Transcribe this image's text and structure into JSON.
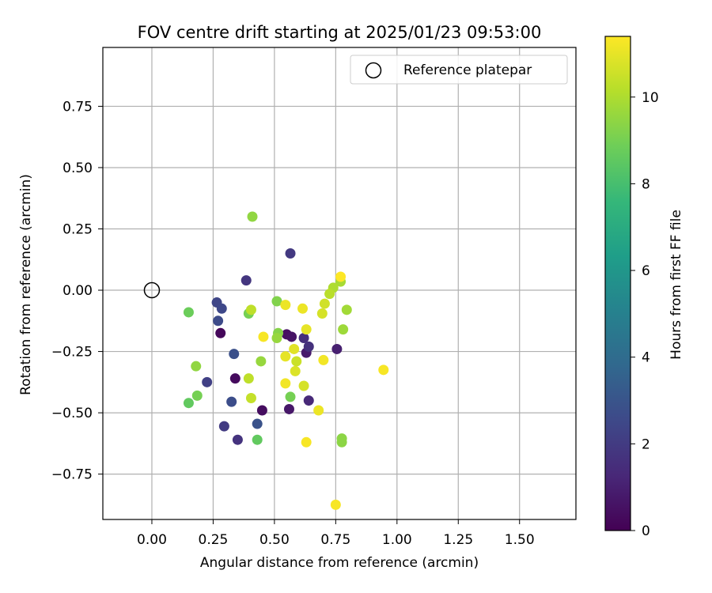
{
  "chart_data": {
    "type": "scatter",
    "title": "FOV centre drift starting at 2025/01/23 09:53:00",
    "xlabel": "Angular distance from reference (arcmin)",
    "ylabel": "Rotation from reference (arcmin)",
    "xlim": [
      -0.2,
      1.73
    ],
    "ylim": [
      -0.935,
      0.99
    ],
    "xticks": [
      0.0,
      0.25,
      0.5,
      0.75,
      1.0,
      1.25,
      1.5
    ],
    "xtick_labels": [
      "0.00",
      "0.25",
      "0.50",
      "0.75",
      "1.00",
      "1.25",
      "1.50"
    ],
    "yticks": [
      0.75,
      0.5,
      0.25,
      0.0,
      -0.25,
      -0.5,
      -0.75
    ],
    "ytick_labels": [
      "0.75",
      "0.50",
      "0.25",
      "0.00",
      "−0.25",
      "−0.50",
      "−0.75"
    ],
    "grid": true,
    "legend_position": "top-right",
    "legend": {
      "label": "Reference platepar",
      "marker": "open-circle"
    },
    "reference_point": {
      "x": 0.0,
      "y": 0.0
    },
    "colorbar": {
      "label": "Hours from first FF file",
      "range": [
        0,
        11.4
      ],
      "ticks": [
        0,
        2,
        4,
        6,
        8,
        10
      ],
      "tick_labels": [
        "0",
        "2",
        "4",
        "6",
        "8",
        "10"
      ],
      "colormap": "viridis",
      "colormap_stops": [
        "#440154",
        "#482878",
        "#3e4989",
        "#31688e",
        "#26828e",
        "#1f9e89",
        "#35b779",
        "#6ece58",
        "#b5de2b",
        "#fde725"
      ]
    },
    "points": [
      {
        "x": 0.28,
        "y": -0.175,
        "c": 0.2
      },
      {
        "x": 0.34,
        "y": -0.36,
        "c": 0.3
      },
      {
        "x": 0.45,
        "y": -0.49,
        "c": 0.4
      },
      {
        "x": 0.55,
        "y": -0.18,
        "c": 0.5
      },
      {
        "x": 0.57,
        "y": -0.19,
        "c": 0.6
      },
      {
        "x": 0.56,
        "y": -0.485,
        "c": 0.7
      },
      {
        "x": 0.63,
        "y": -0.255,
        "c": 0.8
      },
      {
        "x": 0.755,
        "y": -0.24,
        "c": 1.0
      },
      {
        "x": 0.64,
        "y": -0.45,
        "c": 1.3
      },
      {
        "x": 0.62,
        "y": -0.195,
        "c": 1.5
      },
      {
        "x": 0.64,
        "y": -0.23,
        "c": 1.6
      },
      {
        "x": 0.35,
        "y": -0.61,
        "c": 1.7
      },
      {
        "x": 0.385,
        "y": 0.04,
        "c": 1.8
      },
      {
        "x": 0.565,
        "y": 0.15,
        "c": 1.9
      },
      {
        "x": 0.295,
        "y": -0.555,
        "c": 2.0
      },
      {
        "x": 0.225,
        "y": -0.375,
        "c": 2.2
      },
      {
        "x": 0.265,
        "y": -0.05,
        "c": 2.4
      },
      {
        "x": 0.285,
        "y": -0.075,
        "c": 2.5
      },
      {
        "x": 0.27,
        "y": -0.125,
        "c": 2.6
      },
      {
        "x": 0.325,
        "y": -0.455,
        "c": 2.7
      },
      {
        "x": 0.335,
        "y": -0.26,
        "c": 2.8
      },
      {
        "x": 0.43,
        "y": -0.545,
        "c": 2.9
      },
      {
        "x": 0.15,
        "y": -0.46,
        "c": 8.6
      },
      {
        "x": 0.43,
        "y": -0.61,
        "c": 8.6
      },
      {
        "x": 0.15,
        "y": -0.09,
        "c": 8.8
      },
      {
        "x": 0.185,
        "y": -0.43,
        "c": 9.0
      },
      {
        "x": 0.395,
        "y": -0.095,
        "c": 9.0
      },
      {
        "x": 0.565,
        "y": -0.435,
        "c": 9.0
      },
      {
        "x": 0.51,
        "y": -0.045,
        "c": 9.2
      },
      {
        "x": 0.515,
        "y": -0.175,
        "c": 9.3
      },
      {
        "x": 0.775,
        "y": -0.62,
        "c": 9.4
      },
      {
        "x": 0.775,
        "y": -0.605,
        "c": 9.4
      },
      {
        "x": 0.18,
        "y": -0.31,
        "c": 9.5
      },
      {
        "x": 0.41,
        "y": 0.3,
        "c": 9.5
      },
      {
        "x": 0.445,
        "y": -0.29,
        "c": 9.6
      },
      {
        "x": 0.51,
        "y": -0.195,
        "c": 9.6
      },
      {
        "x": 0.78,
        "y": -0.16,
        "c": 9.7
      },
      {
        "x": 0.795,
        "y": -0.08,
        "c": 9.8
      },
      {
        "x": 0.77,
        "y": 0.035,
        "c": 9.9
      },
      {
        "x": 0.74,
        "y": 0.01,
        "c": 10.0
      },
      {
        "x": 0.725,
        "y": -0.015,
        "c": 10.2
      },
      {
        "x": 0.395,
        "y": -0.36,
        "c": 10.3
      },
      {
        "x": 0.405,
        "y": -0.08,
        "c": 10.3
      },
      {
        "x": 0.405,
        "y": -0.44,
        "c": 10.4
      },
      {
        "x": 0.59,
        "y": -0.29,
        "c": 10.5
      },
      {
        "x": 0.705,
        "y": -0.055,
        "c": 10.6
      },
      {
        "x": 0.695,
        "y": -0.095,
        "c": 10.7
      },
      {
        "x": 0.62,
        "y": -0.39,
        "c": 10.7
      },
      {
        "x": 0.585,
        "y": -0.33,
        "c": 10.8
      },
      {
        "x": 0.58,
        "y": -0.24,
        "c": 10.9
      },
      {
        "x": 0.63,
        "y": -0.16,
        "c": 11.0
      },
      {
        "x": 0.545,
        "y": -0.27,
        "c": 11.0
      },
      {
        "x": 0.545,
        "y": -0.06,
        "c": 11.1
      },
      {
        "x": 0.615,
        "y": -0.075,
        "c": 11.1
      },
      {
        "x": 0.68,
        "y": -0.49,
        "c": 11.1
      },
      {
        "x": 0.7,
        "y": -0.285,
        "c": 11.2
      },
      {
        "x": 0.545,
        "y": -0.38,
        "c": 11.2
      },
      {
        "x": 0.455,
        "y": -0.19,
        "c": 11.3
      },
      {
        "x": 0.63,
        "y": -0.62,
        "c": 11.3
      },
      {
        "x": 0.75,
        "y": -0.875,
        "c": 11.3
      },
      {
        "x": 0.945,
        "y": -0.325,
        "c": 11.3
      },
      {
        "x": 0.77,
        "y": 0.055,
        "c": 11.4
      }
    ]
  }
}
